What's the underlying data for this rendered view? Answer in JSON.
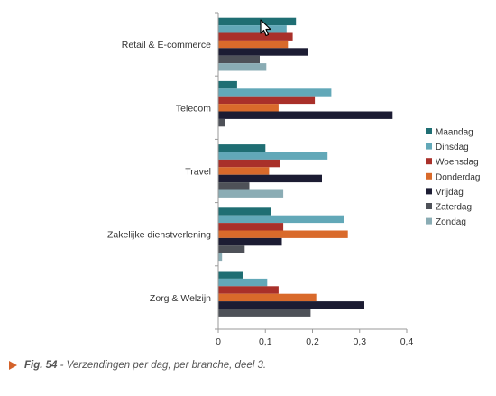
{
  "chart_data": {
    "type": "bar",
    "orientation": "horizontal",
    "categories": [
      "Retail & E-commerce",
      "Telecom",
      "Travel",
      "Zakelijke dienstverlening",
      "Zorg & Welzijn"
    ],
    "series": [
      {
        "name": "Maandag",
        "color": "#1f6e73",
        "values": [
          0.165,
          0.04,
          0.1,
          0.113,
          0.053
        ]
      },
      {
        "name": "Dinsdag",
        "color": "#62a8b8",
        "values": [
          0.145,
          0.24,
          0.232,
          0.268,
          0.104
        ]
      },
      {
        "name": "Woensdag",
        "color": "#a9302a",
        "values": [
          0.158,
          0.205,
          0.132,
          0.138,
          0.128
        ]
      },
      {
        "name": "Donderdag",
        "color": "#d96a2b",
        "values": [
          0.148,
          0.128,
          0.108,
          0.275,
          0.208
        ]
      },
      {
        "name": "Vrijdag",
        "color": "#1c1c33",
        "values": [
          0.19,
          0.37,
          0.22,
          0.135,
          0.31
        ]
      },
      {
        "name": "Zaterdag",
        "color": "#4e5158",
        "values": [
          0.088,
          0.014,
          0.066,
          0.056,
          0.196
        ]
      },
      {
        "name": "Zondag",
        "color": "#8aacb4",
        "values": [
          0.102,
          0.0,
          0.138,
          0.008,
          0.0
        ]
      }
    ],
    "xlim": [
      0,
      0.4
    ],
    "xticks": [
      "0",
      "0,1",
      "0,2",
      "0,3",
      "0,4"
    ],
    "legend_position": "right",
    "grid": false
  },
  "caption": {
    "label": "Fig. 54",
    "text": " - Verzendingen per dag, per branche, deel 3."
  },
  "icons": {
    "cursor": "mouse-pointer-icon",
    "caption_marker": "triangle-right-icon"
  }
}
